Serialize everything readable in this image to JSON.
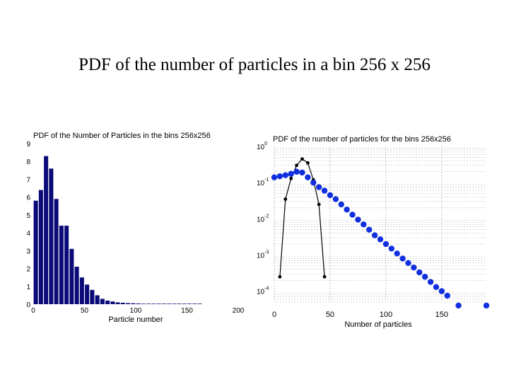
{
  "slide": {
    "title": "PDF of the number of particles in a bin 256 x 256"
  },
  "chart_data": [
    {
      "type": "bar",
      "title": "PDF of the Number of Particles in the bins 256x256",
      "xlabel": "Particle number",
      "ylabel": "",
      "xlim": [
        0,
        200
      ],
      "ylim": [
        0,
        9
      ],
      "xticks": [
        0,
        50,
        100,
        150,
        200
      ],
      "yticks": [
        0,
        1,
        2,
        3,
        4,
        5,
        6,
        7,
        8,
        9
      ],
      "grid": false,
      "bar_color": "#0a0a78",
      "x": [
        2.5,
        7.5,
        12.5,
        17.5,
        22.5,
        27.5,
        32.5,
        37.5,
        42.5,
        47.5,
        52.5,
        57.5,
        62.5,
        67.5,
        72.5,
        77.5,
        82.5,
        87.5,
        92.5,
        97.5,
        102.5,
        107.5,
        112.5,
        117.5,
        122.5,
        127.5,
        132.5,
        137.5,
        142.5,
        147.5,
        152.5,
        157.5,
        162.5
      ],
      "values": [
        5.8,
        6.4,
        8.3,
        7.6,
        5.9,
        4.4,
        4.4,
        3.1,
        2.1,
        1.5,
        1.1,
        0.8,
        0.5,
        0.3,
        0.2,
        0.15,
        0.1,
        0.08,
        0.06,
        0.05,
        0.04,
        0.03,
        0.03,
        0.03,
        0.03,
        0.03,
        0.03,
        0.03,
        0.03,
        0.03,
        0.03,
        0.03,
        0.03
      ]
    },
    {
      "type": "scatter",
      "title": "PDF of the number of particles for the bins 256x256",
      "xlabel": "Number of particles",
      "ylabel": "",
      "xlim": [
        0,
        190
      ],
      "ylim": [
        5e-05,
        1
      ],
      "yscale": "log",
      "xticks": [
        0,
        50,
        100,
        150
      ],
      "yticks": [
        1,
        0.1,
        0.01,
        0.001,
        0.0001
      ],
      "ytick_labels": [
        {
          "base": "10",
          "exp": "0"
        },
        {
          "base": "10",
          "exp": "-1"
        },
        {
          "base": "10",
          "exp": "-2"
        },
        {
          "base": "10",
          "exp": "-3"
        },
        {
          "base": "10",
          "exp": "-4"
        }
      ],
      "grid": true,
      "series": [
        {
          "color": "#1030e0",
          "marker": "large-dot",
          "x": [
            0,
            5,
            10,
            15,
            20,
            25,
            30,
            35,
            40,
            45,
            50,
            55,
            60,
            65,
            70,
            75,
            80,
            85,
            90,
            95,
            100,
            105,
            110,
            115,
            120,
            125,
            130,
            135,
            140,
            145,
            150,
            155,
            165,
            190
          ],
          "y": [
            0.14,
            0.15,
            0.16,
            0.175,
            0.2,
            0.19,
            0.14,
            0.1,
            0.075,
            0.06,
            0.045,
            0.035,
            0.025,
            0.018,
            0.013,
            0.0095,
            0.007,
            0.005,
            0.0035,
            0.0027,
            0.002,
            0.0015,
            0.0011,
            0.0008,
            0.0006,
            0.00045,
            0.00033,
            0.00025,
            0.00018,
            0.00013,
            0.0001,
            7.5e-05,
            4e-05,
            4e-05
          ]
        },
        {
          "color": "#000000",
          "marker": "small-dot-line",
          "x": [
            5,
            10,
            15,
            20,
            25,
            30,
            35,
            40,
            45
          ],
          "y": [
            0.00025,
            0.035,
            0.13,
            0.3,
            0.45,
            0.35,
            0.12,
            0.025,
            0.00025
          ]
        }
      ]
    }
  ]
}
